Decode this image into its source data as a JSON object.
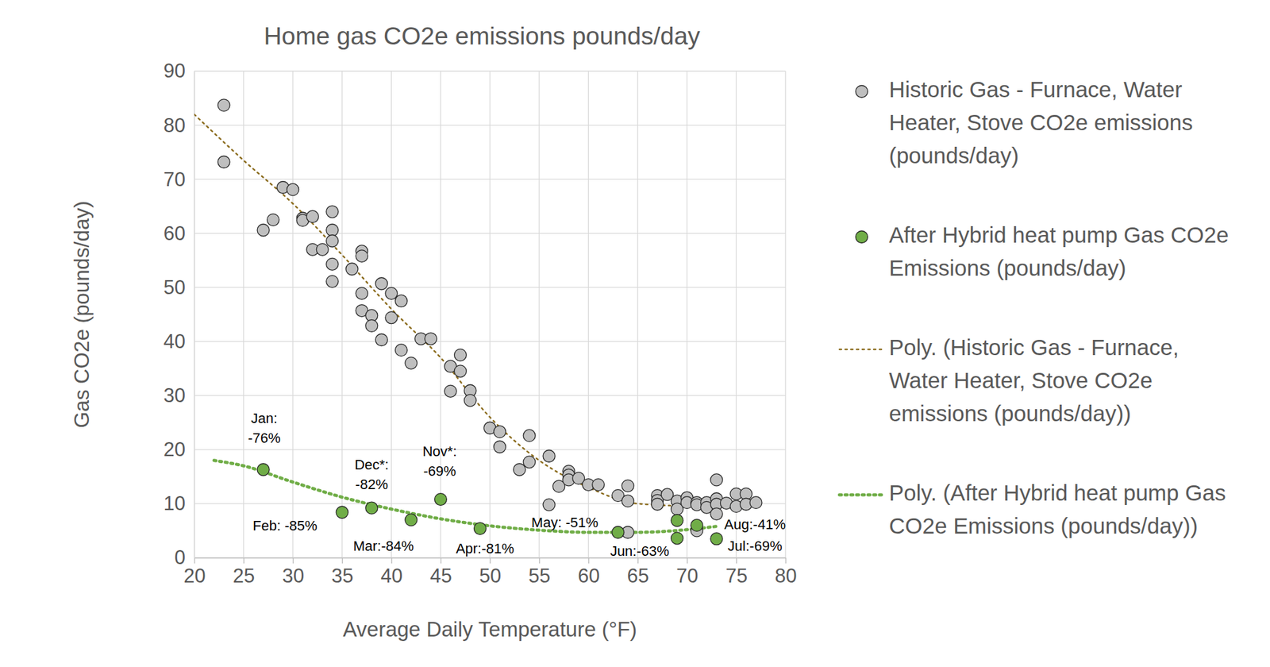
{
  "chart_data": {
    "type": "scatter",
    "title": "Home gas CO2e emissions pounds/day",
    "x_label": "Average Daily Temperature (°F)",
    "y_label": "Gas CO2e (pounds/day)",
    "xlim": [
      20,
      80
    ],
    "ylim": [
      0,
      90
    ],
    "xticks": [
      20,
      25,
      30,
      35,
      40,
      45,
      50,
      55,
      60,
      65,
      70,
      75,
      80
    ],
    "yticks": [
      0,
      10,
      20,
      30,
      40,
      50,
      60,
      70,
      80,
      90
    ],
    "grid": true,
    "legend": "right",
    "series": [
      {
        "name": "Historic Gas - Furnace, Water Heater, Stove CO2e emissions (pounds/day)",
        "type": "scatter",
        "marker": "circle",
        "color": "#bfbfbf",
        "x": [
          23,
          23,
          27,
          28,
          29,
          30,
          31,
          31,
          32,
          32,
          33,
          34,
          34,
          34,
          34,
          34,
          36,
          37,
          37,
          37,
          37,
          38,
          38,
          39,
          39,
          40,
          40,
          41,
          41,
          42,
          43,
          44,
          46,
          46,
          47,
          47,
          48,
          48,
          50,
          51,
          51,
          53,
          54,
          54,
          56,
          56,
          57,
          58,
          58,
          58,
          59,
          60,
          61,
          63,
          64,
          64,
          64,
          67,
          67,
          67,
          68,
          69,
          69,
          70,
          70,
          71,
          71,
          71,
          72,
          72,
          73,
          73,
          73,
          73,
          74,
          75,
          75,
          76,
          76,
          77
        ],
        "values": [
          83.7,
          73.2,
          60.6,
          62.5,
          68.5,
          68.1,
          62.8,
          62.4,
          63.1,
          57,
          57,
          64,
          60.6,
          58.6,
          54.3,
          51.1,
          53.4,
          56.7,
          55.8,
          48.9,
          45.7,
          44.8,
          42.9,
          50.7,
          40.3,
          48.9,
          44.4,
          47.5,
          38.4,
          36,
          40.5,
          40.5,
          35.4,
          30.8,
          37.5,
          34.5,
          30.9,
          29.1,
          24,
          23.3,
          20.5,
          16.3,
          22.6,
          17.7,
          18.8,
          9.8,
          13.2,
          16,
          15.3,
          14.4,
          14.7,
          13.5,
          13.5,
          11.5,
          13.3,
          10.5,
          4.7,
          11.5,
          10.6,
          9.9,
          11.7,
          10.5,
          9,
          11.1,
          10.2,
          10.2,
          9.8,
          5,
          10.2,
          9.3,
          14.4,
          10.9,
          9.9,
          8.1,
          10.1,
          11.8,
          9.5,
          11.8,
          9.9,
          10.2
        ]
      },
      {
        "name": "After Hybrid heat pump Gas CO2e Emissions (pounds/day)",
        "type": "scatter",
        "marker": "circle",
        "color": "#70ad47",
        "x": [
          27,
          35,
          38,
          42,
          45,
          49,
          63,
          69,
          69,
          71,
          73
        ],
        "values": [
          16.3,
          8.4,
          9.2,
          7,
          10.8,
          5.4,
          4.7,
          3.6,
          6.9,
          6,
          3.5
        ]
      },
      {
        "name": "Poly. (Historic Gas - Furnace, Water Heater, Stove CO2e emissions (pounds/day))",
        "type": "line",
        "line_style": "dotted",
        "color": "#8c6d1f",
        "x": [
          20,
          25,
          30,
          35,
          40,
          45,
          50,
          55,
          60,
          65,
          70,
          75,
          77
        ],
        "values": [
          82,
          73.5,
          65.5,
          56,
          46,
          37,
          26,
          18,
          13,
          10,
          9.6,
          10.3,
          10.8
        ]
      },
      {
        "name": "Poly. (After Hybrid heat pump Gas CO2e Emissions (pounds/day))",
        "type": "line",
        "line_style": "dotted",
        "color": "#70ad47",
        "x": [
          22,
          25,
          30,
          35,
          40,
          45,
          50,
          55,
          60,
          65,
          70,
          73
        ],
        "values": [
          18,
          17,
          14,
          11.2,
          9,
          7.2,
          5.9,
          5.1,
          4.7,
          4.7,
          5.2,
          5.8
        ]
      }
    ],
    "annotations": [
      {
        "text": "Jan:\n-76%",
        "x": 27.1,
        "y": 24
      },
      {
        "text": "Dec*:\n-82%",
        "x": 38,
        "y": 15.5
      },
      {
        "text": "Nov*:\n-69%",
        "x": 44.9,
        "y": 17.9
      },
      {
        "text": "Feb: -85%",
        "x": 29.2,
        "y": 6
      },
      {
        "text": "Mar:-84%",
        "x": 39.2,
        "y": 2.2
      },
      {
        "text": "Apr:-81%",
        "x": 49.5,
        "y": 1.8
      },
      {
        "text": "May: -51%",
        "x": 57.6,
        "y": 6.6
      },
      {
        "text": "Jun:-63%",
        "x": 65.2,
        "y": 1.35
      },
      {
        "text": "Aug:-41%",
        "x": 76.9,
        "y": 6.2
      },
      {
        "text": "Jul:-69%",
        "x": 76.9,
        "y": 2.25
      }
    ]
  }
}
